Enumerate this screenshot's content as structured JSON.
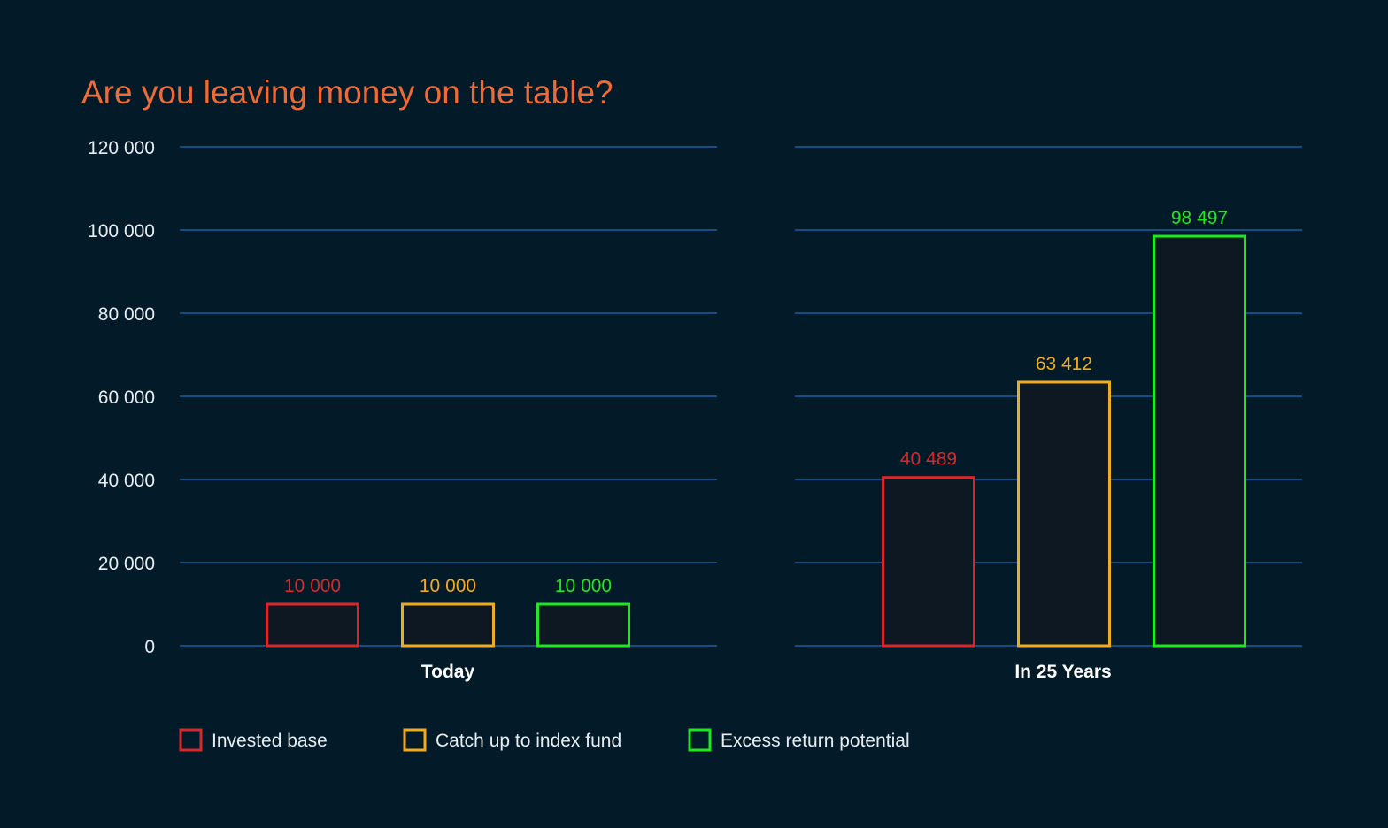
{
  "colors": {
    "background": "#031a28",
    "title": "#f06a35",
    "gridline": "#1b5ea0",
    "bar_fill": "#0d1823",
    "text": "#e8edf2"
  },
  "chart_data": {
    "type": "bar",
    "title": "Are you leaving money on the table?",
    "xlabel": "",
    "ylabel": "",
    "ylim": [
      0,
      120000
    ],
    "y_ticks": [
      {
        "value": 0,
        "label": "0"
      },
      {
        "value": 20000,
        "label": "20 000"
      },
      {
        "value": 40000,
        "label": "40 000"
      },
      {
        "value": 60000,
        "label": "60 000"
      },
      {
        "value": 80000,
        "label": "80 000"
      },
      {
        "value": 100000,
        "label": "100 000"
      },
      {
        "value": 120000,
        "label": "120 000"
      }
    ],
    "grid": true,
    "legend_position": "bottom-left",
    "categories": [
      "Today",
      "In 25 Years"
    ],
    "series": [
      {
        "name": "Invested base",
        "color": "#d8282b",
        "values": [
          10000,
          40489
        ],
        "labels": [
          "10 000",
          "40 489"
        ]
      },
      {
        "name": "Catch up to index fund",
        "color": "#f0ab1e",
        "values": [
          10000,
          63412
        ],
        "labels": [
          "10 000",
          "63 412"
        ]
      },
      {
        "name": "Excess return potential",
        "color": "#1ee81e",
        "values": [
          10000,
          98497
        ],
        "labels": [
          "10 000",
          "98 497"
        ]
      }
    ]
  }
}
